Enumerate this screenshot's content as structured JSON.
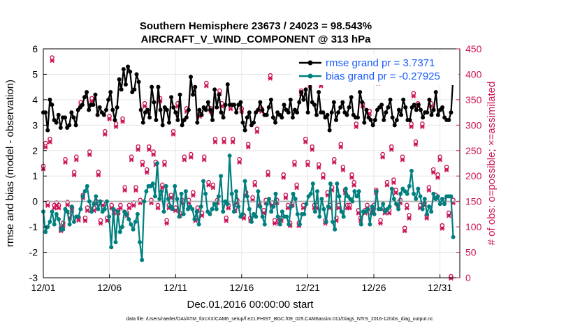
{
  "chart_data": {
    "type": "line",
    "title": "Southern Hemisphere 23673 / 24023 = 98.543%",
    "subtitle": "AIRCRAFT_V_WIND_COMPONENT @ 313 hPa",
    "xlabel": "Dec.01,2016 00:00:00 start",
    "ylabel": "rmse and bias (model - observation)",
    "ylabel_right": "# of obs: o=possible; ×=assimilated",
    "footer": "data file: /Users/raeder/DAI/ATM_forcXX/CAM6_setup/f.e21.FHIST_BGC.f09_025.CAM6assim.011/Diags_NTrS_2016-12/obs_diag_output.nc",
    "xlim": [
      0,
      31.5
    ],
    "ylim": [
      -3,
      6
    ],
    "ylim_right": [
      0,
      450
    ],
    "x_ticks": [
      0,
      5,
      10,
      15,
      20,
      25,
      30
    ],
    "x_tick_labels": [
      "12/01",
      "12/06",
      "12/11",
      "12/16",
      "12/21",
      "12/26",
      "12/31"
    ],
    "y_ticks": [
      -3,
      -2,
      -1,
      0,
      1,
      2,
      3,
      4,
      5,
      6
    ],
    "y_tick_labels": [
      "-3",
      "-2",
      "-1",
      "0",
      "1",
      "2",
      "3",
      "4",
      "5",
      "6"
    ],
    "y_right_ticks": [
      0,
      50,
      100,
      150,
      200,
      250,
      300,
      350,
      400,
      450
    ],
    "y_right_tick_labels": [
      "0",
      "50",
      "100",
      "150",
      "200",
      "250",
      "300",
      "350",
      "400",
      "450"
    ],
    "grid": true,
    "legend_position": "top-right",
    "colors": {
      "rmse": "#000000",
      "bias": "#007f7f",
      "obs": "#cc1456",
      "zero_line": "#b0b0b0",
      "legend_text": "#1a5cff"
    },
    "series": [
      {
        "name": "rmse grand pr = 3.7371",
        "axis": "left",
        "values": [
          3.5,
          3.5,
          2.8,
          4.0,
          3.8,
          3.2,
          3.1,
          3.4,
          2.9,
          3.3,
          3.3,
          2.9,
          3.0,
          3.5,
          3.3,
          3.0,
          3.6,
          3.7,
          3.8,
          4.1,
          4.3,
          3.6,
          3.8,
          3.8,
          4.2,
          3.4,
          3.7,
          3.5,
          3.4,
          3.6,
          4.0,
          4.3,
          3.6,
          3.2,
          3.7,
          4.8,
          4.4,
          5.2,
          4.6,
          5.3,
          5.1,
          4.3,
          4.4,
          5.0,
          4.7,
          3.6,
          3.1,
          3.5,
          3.6,
          3.3,
          4.5,
          3.9,
          3.2,
          4.5,
          3.6,
          3.0,
          3.7,
          3.6,
          3.1,
          4.1,
          3.7,
          3.5,
          3.2,
          4.2,
          3.0,
          3.2,
          3.3,
          3.6,
          4.9,
          4.2,
          4.5,
          3.1,
          3.6,
          3.4,
          3.7,
          3.6,
          3.9,
          3.6,
          3.2,
          4.4,
          3.7,
          4.2,
          3.5,
          3.3,
          3.8,
          4.6,
          3.8,
          3.8,
          3.8,
          3.5,
          3.8,
          3.9,
          3.1,
          2.8,
          3.3,
          3.5,
          3.0,
          3.1,
          3.5,
          3.6,
          3.9,
          3.6,
          3.4,
          3.4,
          3.7,
          4.0,
          3.3,
          3.1,
          3.5,
          3.4,
          3.3,
          3.8,
          3.6,
          3.5,
          4.0,
          3.3,
          3.6,
          3.5,
          3.9,
          4.3,
          4.0,
          4.4,
          3.5,
          4.8,
          3.9,
          3.8,
          3.4,
          4.3,
          3.5,
          3.5,
          3.3,
          3.4,
          2.8,
          3.5,
          3.9,
          3.2,
          3.5,
          3.7,
          3.9,
          3.5,
          3.4,
          3.7,
          4.1,
          3.4,
          3.3,
          3.3,
          4.3,
          3.9,
          3.1,
          3.6,
          3.3,
          3.2,
          3.0,
          3.2,
          3.6,
          3.7,
          3.8,
          3.2,
          3.5,
          3.7,
          4.0,
          3.3,
          3.0,
          3.2,
          3.6,
          3.4,
          4.0,
          3.7,
          3.2,
          3.2,
          3.7,
          3.8,
          3.6,
          3.8,
          3.6,
          3.3,
          3.5,
          3.5,
          4.0,
          3.4,
          3.6,
          4.3,
          3.4,
          3.6,
          3.7,
          3.3,
          3.2,
          3.2,
          3.5,
          4.9
        ]
      },
      {
        "name": "bias grand pr = -0.27925",
        "axis": "left",
        "values": [
          -0.4,
          -1.2,
          -1.0,
          -0.8,
          -0.4,
          -0.9,
          -0.5,
          -0.7,
          -1.1,
          -1.1,
          -0.3,
          -0.4,
          -0.9,
          -0.2,
          -0.8,
          -0.6,
          -0.6,
          -0.3,
          0.2,
          0.4,
          0.6,
          0.0,
          -0.4,
          -0.1,
          0.2,
          -0.3,
          0.0,
          -0.4,
          -0.3,
          0.0,
          -0.6,
          -1.8,
          -0.3,
          -1.6,
          -0.4,
          -1.2,
          -1.0,
          -0.4,
          -0.5,
          -0.7,
          -0.9,
          -1.1,
          -0.8,
          -0.5,
          -1.6,
          -2.3,
          0.0,
          0.4,
          0.6,
          0.6,
          0.7,
          0.2,
          1.5,
          0.1,
          0.4,
          -0.4,
          0.6,
          0.1,
          -0.2,
          -0.3,
          0.6,
          0.1,
          -0.6,
          0.3,
          -0.5,
          0.4,
          -0.3,
          -0.2,
          -0.3,
          -0.7,
          -0.4,
          -0.9,
          -0.2,
          0.8,
          0.3,
          -0.4,
          -0.5,
          -0.3,
          -0.1,
          -0.3,
          0.2,
          1.0,
          -0.4,
          0.0,
          -0.1,
          1.8,
          0.3,
          -0.4,
          0.4,
          -0.2,
          -0.6,
          -0.5,
          0.8,
          0.2,
          -0.3,
          -0.8,
          -0.5,
          -0.6,
          0.4,
          -0.2,
          -0.6,
          -0.9,
          -0.1,
          0.1,
          -0.4,
          -0.2,
          0.3,
          -0.6,
          -0.9,
          -0.4,
          -0.6,
          -0.6,
          -0.9,
          -0.2,
          0.3,
          0.1,
          -0.5,
          -0.9,
          -0.5,
          -0.5,
          -0.1,
          0.2,
          0.3,
          0.7,
          -0.4,
          0.4,
          -0.6,
          0.1,
          -0.3,
          -0.8,
          -0.2,
          0.7,
          -0.8,
          -1.1,
          0.7,
          0.2,
          -0.4,
          -0.6,
          0.5,
          0.2,
          0.1,
          0.0,
          0.4,
          0.2,
          0.4,
          -0.9,
          -0.4,
          -0.4,
          -0.3,
          -0.9,
          -0.2,
          -0.5,
          0.4,
          -0.3,
          -0.3,
          -0.1,
          -0.4,
          -0.3,
          -0.2,
          0.5,
          0.1,
          -0.1,
          -0.3,
          0.3,
          0.5,
          0.4,
          0.3,
          0.6,
          1.2,
          0.3,
          0.1,
          0.5,
          0.2,
          -0.3,
          0.1,
          -0.5,
          -0.2,
          -0.4,
          0.3,
          0.1,
          0.2,
          -0.1,
          0.1,
          -0.1,
          0.2,
          0.2,
          0.2,
          -1.4
        ]
      },
      {
        "name": "obs possible",
        "axis": "right",
        "marker": "o",
        "values": [
          217,
          262,
          145,
          270,
          430,
          140,
          145,
          140,
          95,
          105,
          230,
          146,
          120,
          135,
          205,
          235,
          116,
          342,
          160,
          115,
          135,
          245,
          350,
          135,
          148,
          205,
          110,
          145,
          285,
          115,
          315,
          140,
          130,
          300,
          130,
          140,
          310,
          175,
          125,
          140,
          235,
          145,
          175,
          255,
          150,
          225,
          340,
          210,
          255,
          150,
          245,
          225,
          140,
          350,
          180,
          225,
          110,
          140,
          160,
          285,
          135,
          340,
          125,
          150,
          235,
          330,
          150,
          240,
          165,
          115,
          135,
          320,
          125,
          235,
          380,
          185,
          330,
          180,
          270,
          150,
          365,
          340,
          270,
          115,
          140,
          335,
          270,
          135,
          150,
          230,
          330,
          120,
          165,
          260,
          115,
          155,
          185,
          290,
          145,
          330,
          130,
          150,
          205,
          395,
          145,
          110,
          150,
          110,
          115,
          200,
          160,
          140,
          105,
          145,
          225,
          180,
          105,
          365,
          140,
          270,
          225,
          380,
          255,
          140,
          140,
          220,
          380,
          200,
          110,
          165,
          140,
          175,
          230,
          115,
          140,
          260,
          215,
          170,
          140,
          140,
          200,
          185,
          300,
          130,
          115,
          340,
          130,
          140,
          325,
          130,
          140,
          170,
          385,
          110,
          240,
          130,
          185,
          130,
          255,
          190,
          170,
          145,
          150,
          235,
          95,
          140,
          120,
          300,
          360,
          265,
          340,
          140,
          300,
          145,
          120,
          175,
          340,
          210,
          160,
          200,
          235,
          100,
          150,
          215,
          125,
          0,
          150
        ]
      },
      {
        "name": "obs assimilated",
        "axis": "right",
        "marker": "x",
        "values": [
          215,
          258,
          143,
          268,
          428,
          138,
          143,
          138,
          93,
          103,
          228,
          144,
          118,
          133,
          203,
          233,
          114,
          340,
          158,
          113,
          133,
          243,
          348,
          133,
          146,
          203,
          108,
          143,
          283,
          113,
          313,
          138,
          128,
          298,
          128,
          138,
          308,
          173,
          123,
          138,
          233,
          143,
          173,
          253,
          148,
          223,
          338,
          208,
          253,
          148,
          243,
          223,
          138,
          348,
          178,
          223,
          108,
          138,
          158,
          283,
          133,
          338,
          123,
          148,
          233,
          328,
          148,
          238,
          163,
          113,
          133,
          318,
          123,
          233,
          378,
          183,
          328,
          178,
          268,
          148,
          363,
          338,
          268,
          113,
          138,
          333,
          268,
          133,
          148,
          228,
          328,
          118,
          163,
          258,
          113,
          153,
          183,
          288,
          143,
          328,
          128,
          148,
          203,
          393,
          143,
          108,
          148,
          108,
          113,
          198,
          158,
          138,
          103,
          143,
          223,
          178,
          103,
          363,
          138,
          268,
          223,
          378,
          253,
          138,
          138,
          218,
          378,
          198,
          108,
          163,
          138,
          173,
          228,
          113,
          138,
          258,
          213,
          168,
          138,
          138,
          198,
          183,
          298,
          128,
          113,
          338,
          128,
          138,
          323,
          128,
          138,
          168,
          383,
          108,
          238,
          128,
          183,
          128,
          253,
          188,
          168,
          143,
          148,
          233,
          93,
          138,
          118,
          298,
          358,
          263,
          338,
          138,
          298,
          143,
          118,
          173,
          338,
          208,
          158,
          198,
          233,
          98,
          148,
          213,
          123,
          0,
          148
        ]
      }
    ]
  }
}
